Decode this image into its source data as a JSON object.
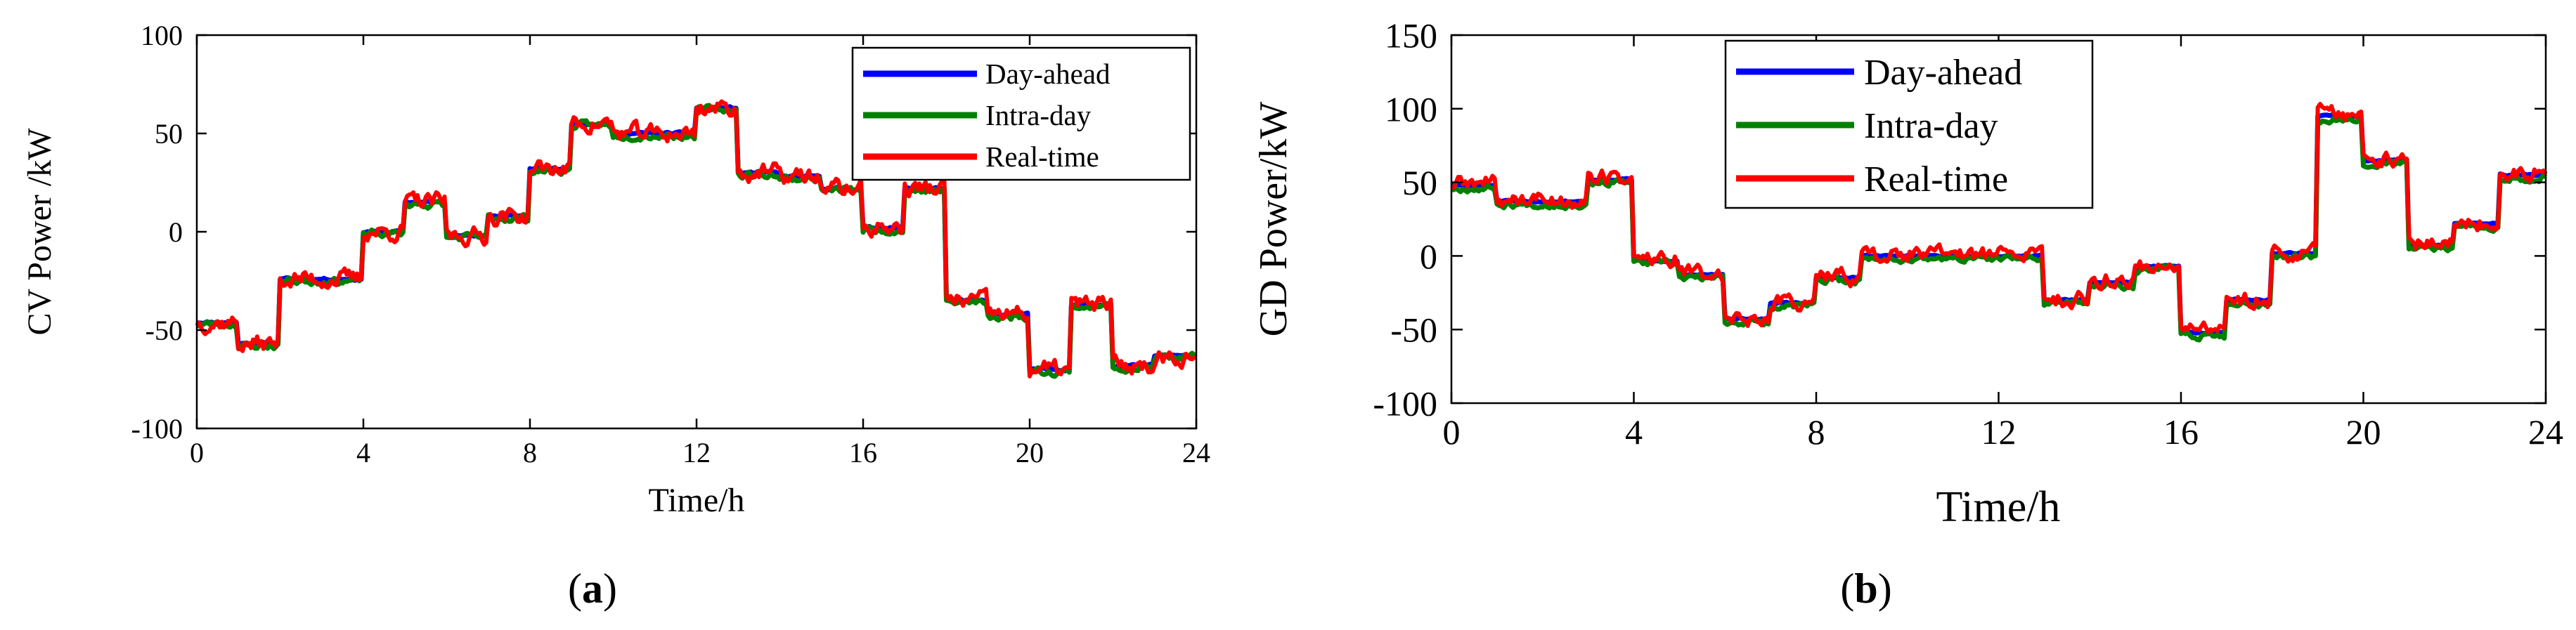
{
  "colors": {
    "day_ahead": "#0000ff",
    "intra_day": "#008000",
    "real_time": "#ff0000",
    "axis": "#000000",
    "background": "#ffffff"
  },
  "chart_data": [
    {
      "id": "a",
      "type": "line",
      "panel_label": "a",
      "panel_label_open": "(",
      "panel_label_close": ")",
      "xlabel": "Time/h",
      "ylabel": "CV Power /kW",
      "xlim": [
        0,
        24
      ],
      "ylim": [
        -100,
        100
      ],
      "xticks": [
        0,
        4,
        8,
        12,
        16,
        20,
        24
      ],
      "yticks": [
        -100,
        -50,
        0,
        50,
        100
      ],
      "legend_position": "top-right",
      "legend": [
        "Day-ahead",
        "Intra-day",
        "Real-time"
      ],
      "step_hours": [
        {
          "start": 0,
          "end": 1,
          "level": -46
        },
        {
          "start": 1,
          "end": 2,
          "level": -57
        },
        {
          "start": 2,
          "end": 4,
          "level": -24
        },
        {
          "start": 4,
          "end": 5,
          "level": 0
        },
        {
          "start": 5,
          "end": 6,
          "level": 15
        },
        {
          "start": 6,
          "end": 7,
          "level": -2
        },
        {
          "start": 7,
          "end": 8,
          "level": 8
        },
        {
          "start": 8,
          "end": 9,
          "level": 32
        },
        {
          "start": 9,
          "end": 10,
          "level": 55
        },
        {
          "start": 10,
          "end": 12,
          "level": 50
        },
        {
          "start": 12,
          "end": 13,
          "level": 63
        },
        {
          "start": 13,
          "end": 14,
          "level": 30
        },
        {
          "start": 14,
          "end": 15,
          "level": 28
        },
        {
          "start": 15,
          "end": 16,
          "level": 22
        },
        {
          "start": 16,
          "end": 17,
          "level": 2
        },
        {
          "start": 17,
          "end": 18,
          "level": 22
        },
        {
          "start": 18,
          "end": 19,
          "level": -35
        },
        {
          "start": 19,
          "end": 20,
          "level": -42
        },
        {
          "start": 20,
          "end": 21,
          "level": -70
        },
        {
          "start": 21,
          "end": 22,
          "level": -37
        },
        {
          "start": 22,
          "end": 23,
          "level": -68
        },
        {
          "start": 23,
          "end": 24,
          "level": -63
        }
      ],
      "series": [
        {
          "name": "Day-ahead",
          "offset": 0,
          "noise": 0.5,
          "seed": 11
        },
        {
          "name": "Intra-day",
          "offset": -1,
          "noise": 1.5,
          "seed": 23
        },
        {
          "name": "Real-time",
          "offset": 0,
          "noise": 3.5,
          "seed": 37
        }
      ]
    },
    {
      "id": "b",
      "type": "line",
      "panel_label": "b",
      "panel_label_open": "(",
      "panel_label_close": ")",
      "xlabel": "Time/h",
      "ylabel": "GD Power/kW",
      "xlim": [
        0,
        24
      ],
      "ylim": [
        -100,
        150
      ],
      "xticks": [
        0,
        4,
        8,
        12,
        16,
        20,
        24
      ],
      "yticks": [
        -100,
        -50,
        0,
        50,
        100,
        150
      ],
      "legend_position": "top-center",
      "legend": [
        "Day-ahead",
        "Intra-day",
        "Real-time"
      ],
      "step_hours": [
        {
          "start": 0,
          "end": 1,
          "level": 48
        },
        {
          "start": 1,
          "end": 3,
          "level": 37
        },
        {
          "start": 3,
          "end": 4,
          "level": 52
        },
        {
          "start": 4,
          "end": 5,
          "level": -3
        },
        {
          "start": 5,
          "end": 6,
          "level": -13
        },
        {
          "start": 6,
          "end": 7,
          "level": -43
        },
        {
          "start": 7,
          "end": 8,
          "level": -32
        },
        {
          "start": 8,
          "end": 9,
          "level": -15
        },
        {
          "start": 9,
          "end": 13,
          "level": 0
        },
        {
          "start": 13,
          "end": 14,
          "level": -30
        },
        {
          "start": 14,
          "end": 15,
          "level": -18
        },
        {
          "start": 15,
          "end": 16,
          "level": -7
        },
        {
          "start": 16,
          "end": 17,
          "level": -52
        },
        {
          "start": 17,
          "end": 18,
          "level": -30
        },
        {
          "start": 18,
          "end": 19,
          "level": 2
        },
        {
          "start": 19,
          "end": 20,
          "level": 95
        },
        {
          "start": 20,
          "end": 21,
          "level": 65
        },
        {
          "start": 21,
          "end": 22,
          "level": 7
        },
        {
          "start": 22,
          "end": 23,
          "level": 22
        },
        {
          "start": 23,
          "end": 24,
          "level": 55
        }
      ],
      "series": [
        {
          "name": "Day-ahead",
          "offset": 0,
          "noise": 0.5,
          "seed": 51
        },
        {
          "name": "Intra-day",
          "offset": -2,
          "noise": 1.8,
          "seed": 67
        },
        {
          "name": "Real-time",
          "offset": 1,
          "noise": 4.5,
          "seed": 89
        }
      ]
    }
  ]
}
